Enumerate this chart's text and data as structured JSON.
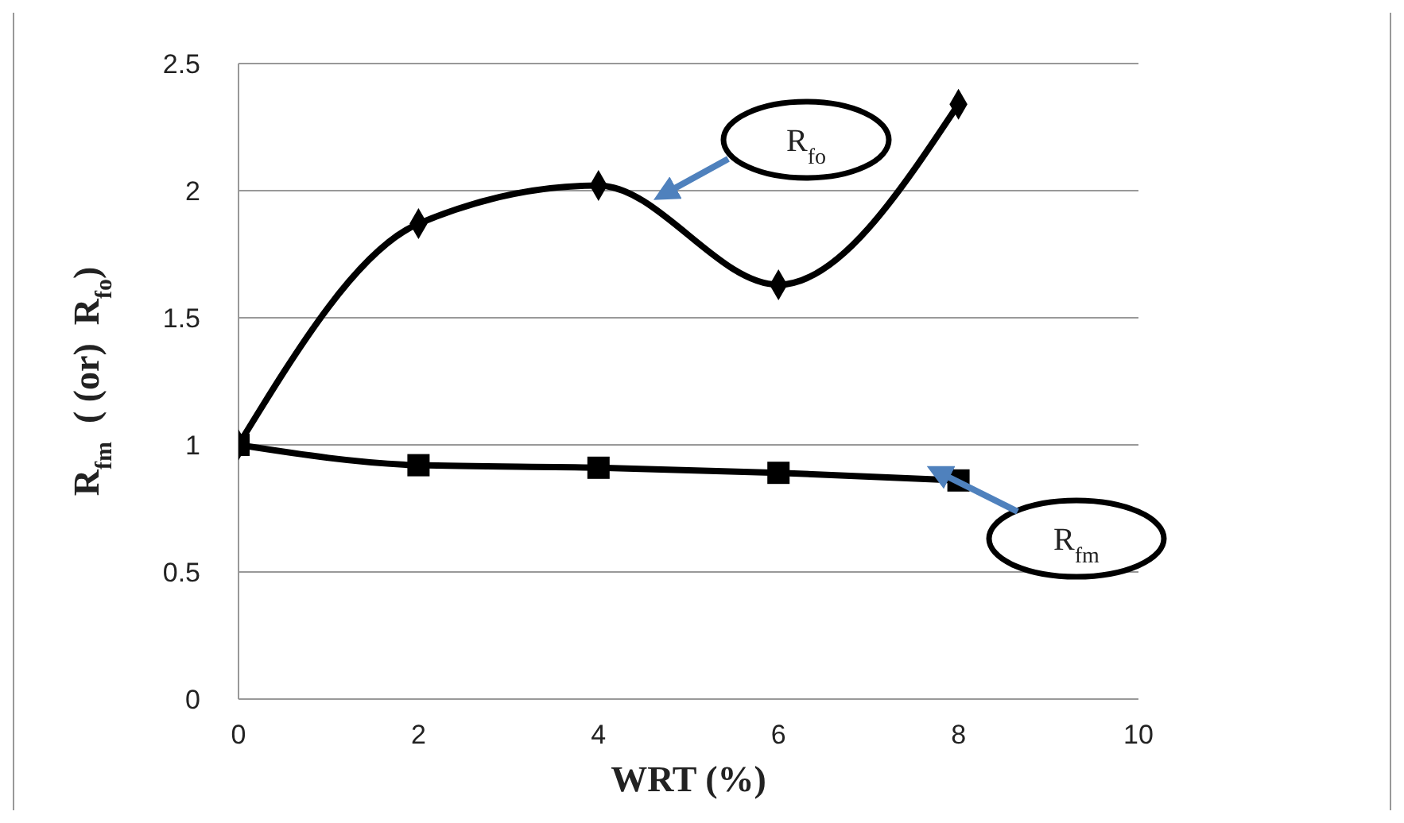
{
  "chart_data": {
    "type": "line",
    "xlabel": "WRT (%)",
    "ylabel": "R$_{fm}$  ( (or)  R$_{fo}$)",
    "x": [
      0,
      2,
      4,
      6,
      8
    ],
    "series": [
      {
        "name": "R$_{fo}$",
        "color": "#000000",
        "values": [
          1.0,
          1.87,
          2.02,
          1.63,
          2.34
        ],
        "marker": "diamond"
      },
      {
        "name": "R$_{fm}$",
        "color": "#000000",
        "values": [
          1.0,
          0.92,
          0.91,
          0.89,
          0.86
        ],
        "marker": "square"
      }
    ],
    "xlim": [
      0,
      10
    ],
    "xticks": [
      0,
      2,
      4,
      6,
      8,
      10
    ],
    "ylim": [
      0,
      2.5
    ],
    "yticks": [
      0,
      0.5,
      1,
      1.5,
      2,
      2.5
    ],
    "grid": "y",
    "legend": false,
    "line_style": "solid"
  }
}
